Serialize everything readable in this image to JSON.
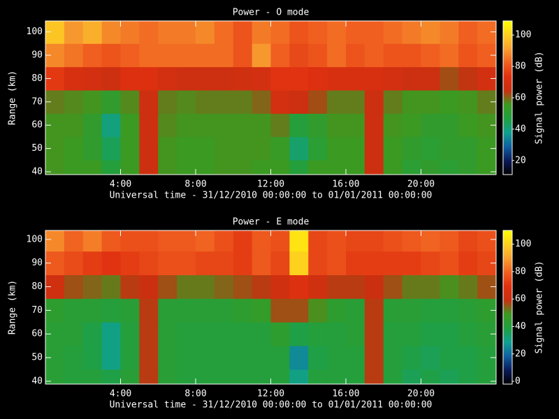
{
  "chart_data": [
    {
      "type": "heatmap",
      "title": "Power - O mode",
      "xlabel": "Universal time - 31/12/2010 00:00:00 to 01/01/2011 00:00:00",
      "ylabel": "Range (km)",
      "colorbar_label": "Signal power (dB)",
      "x": [
        0.5,
        1.5,
        2.5,
        3.5,
        4.5,
        5.5,
        6.5,
        7.5,
        8.5,
        9.5,
        10.5,
        11.5,
        12.5,
        13.5,
        14.5,
        15.5,
        16.5,
        17.5,
        18.5,
        19.5,
        20.5,
        21.5,
        22.5,
        23.5
      ],
      "y": [
        40,
        50,
        60,
        70,
        80,
        90,
        100
      ],
      "z": [
        [
          56,
          55,
          55,
          48,
          55,
          66,
          56,
          55,
          55,
          56,
          56,
          55,
          55,
          48,
          55,
          55,
          55,
          66,
          55,
          50,
          52,
          50,
          52,
          55
        ],
        [
          56,
          55,
          52,
          44,
          55,
          66,
          56,
          55,
          55,
          56,
          56,
          56,
          54,
          42,
          50,
          55,
          55,
          66,
          55,
          52,
          50,
          52,
          52,
          55
        ],
        [
          56,
          56,
          52,
          40,
          55,
          66,
          57,
          56,
          56,
          56,
          56,
          56,
          58,
          48,
          52,
          56,
          56,
          66,
          56,
          55,
          52,
          52,
          55,
          56
        ],
        [
          58,
          57,
          56,
          52,
          57,
          66,
          58,
          57,
          58,
          58,
          58,
          60,
          68,
          66,
          62,
          58,
          58,
          66,
          58,
          56,
          56,
          55,
          56,
          58
        ],
        [
          75,
          70,
          68,
          66,
          72,
          72,
          68,
          66,
          66,
          66,
          67,
          68,
          74,
          74,
          72,
          70,
          70,
          70,
          68,
          66,
          66,
          62,
          64,
          68
        ],
        [
          88,
          85,
          82,
          80,
          82,
          84,
          84,
          84,
          84,
          84,
          80,
          90,
          82,
          78,
          80,
          84,
          80,
          82,
          80,
          80,
          82,
          84,
          80,
          82
        ],
        [
          98,
          90,
          94,
          88,
          86,
          84,
          86,
          86,
          88,
          84,
          80,
          86,
          84,
          80,
          82,
          84,
          82,
          82,
          84,
          86,
          88,
          86,
          82,
          84
        ]
      ],
      "xlim": [
        0,
        24
      ],
      "ylim": [
        38.8,
        104.7
      ],
      "xticks": [
        {
          "value": 4,
          "label": "4:00"
        },
        {
          "value": 8,
          "label": "8:00"
        },
        {
          "value": 12,
          "label": "12:00"
        },
        {
          "value": 16,
          "label": "16:00"
        },
        {
          "value": 20,
          "label": "20:00"
        }
      ],
      "yticks": [
        40,
        50,
        60,
        70,
        80,
        90,
        100
      ],
      "clim": [
        11,
        109
      ],
      "cticks": [
        20,
        40,
        60,
        80,
        100
      ],
      "colorscale": [
        "#000000",
        "#0a1a5a",
        "#1060a0",
        "#10a090",
        "#20a040",
        "#3c9a20",
        "#c83010",
        "#e03010",
        "#f06020",
        "#f8a030",
        "#ffd020",
        "#ffff00"
      ]
    },
    {
      "type": "heatmap",
      "title": "Power - E mode",
      "xlabel": "Universal time - 31/12/2010 00:00:00 to 01/01/2011 00:00:00",
      "ylabel": "Range (km)",
      "colorbar_label": "Signal power (dB)",
      "x": [
        0.5,
        1.5,
        2.5,
        3.5,
        4.5,
        5.5,
        6.5,
        7.5,
        8.5,
        9.5,
        10.5,
        11.5,
        12.5,
        13.5,
        14.5,
        15.5,
        16.5,
        17.5,
        18.5,
        19.5,
        20.5,
        21.5,
        22.5,
        23.5
      ],
      "y": [
        40,
        50,
        60,
        70,
        80,
        90,
        100
      ],
      "z": [
        [
          42,
          40,
          40,
          38,
          42,
          58,
          42,
          40,
          40,
          40,
          40,
          40,
          40,
          30,
          40,
          40,
          40,
          58,
          40,
          36,
          38,
          36,
          38,
          40
        ],
        [
          42,
          40,
          38,
          30,
          40,
          58,
          42,
          40,
          40,
          40,
          40,
          40,
          40,
          25,
          38,
          40,
          40,
          58,
          40,
          38,
          36,
          38,
          38,
          40
        ],
        [
          42,
          42,
          38,
          30,
          40,
          58,
          42,
          40,
          40,
          40,
          40,
          40,
          44,
          38,
          40,
          40,
          42,
          58,
          40,
          40,
          38,
          38,
          40,
          42
        ],
        [
          44,
          42,
          42,
          40,
          42,
          58,
          42,
          42,
          42,
          42,
          44,
          46,
          56,
          56,
          50,
          44,
          42,
          58,
          42,
          42,
          40,
          40,
          42,
          44
        ],
        [
          62,
          56,
          54,
          52,
          58,
          60,
          56,
          52,
          52,
          54,
          56,
          58,
          62,
          68,
          62,
          58,
          58,
          60,
          56,
          52,
          52,
          50,
          52,
          56
        ],
        [
          78,
          75,
          72,
          70,
          72,
          74,
          76,
          76,
          74,
          74,
          72,
          78,
          74,
          100,
          74,
          76,
          72,
          72,
          72,
          72,
          74,
          76,
          72,
          74
        ],
        [
          86,
          80,
          84,
          78,
          76,
          76,
          78,
          78,
          80,
          76,
          72,
          78,
          76,
          104,
          74,
          76,
          74,
          74,
          76,
          78,
          80,
          78,
          74,
          76
        ]
      ],
      "xlim": [
        0,
        24
      ],
      "ylim": [
        38.8,
        103.8
      ],
      "xticks": [
        {
          "value": 4,
          "label": "4:00"
        },
        {
          "value": 8,
          "label": "8:00"
        },
        {
          "value": 12,
          "label": "12:00"
        },
        {
          "value": 16,
          "label": "16:00"
        },
        {
          "value": 20,
          "label": "20:00"
        }
      ],
      "yticks": [
        40,
        50,
        60,
        70,
        80,
        90,
        100
      ],
      "clim": [
        -2,
        110
      ],
      "cticks": [
        0,
        20,
        40,
        60,
        80,
        100
      ],
      "colorscale": [
        "#000000",
        "#0a1a5a",
        "#1060a0",
        "#10a090",
        "#20a040",
        "#3c9a20",
        "#c83010",
        "#e03010",
        "#f06020",
        "#f8a030",
        "#ffd020",
        "#ffff00"
      ]
    }
  ]
}
